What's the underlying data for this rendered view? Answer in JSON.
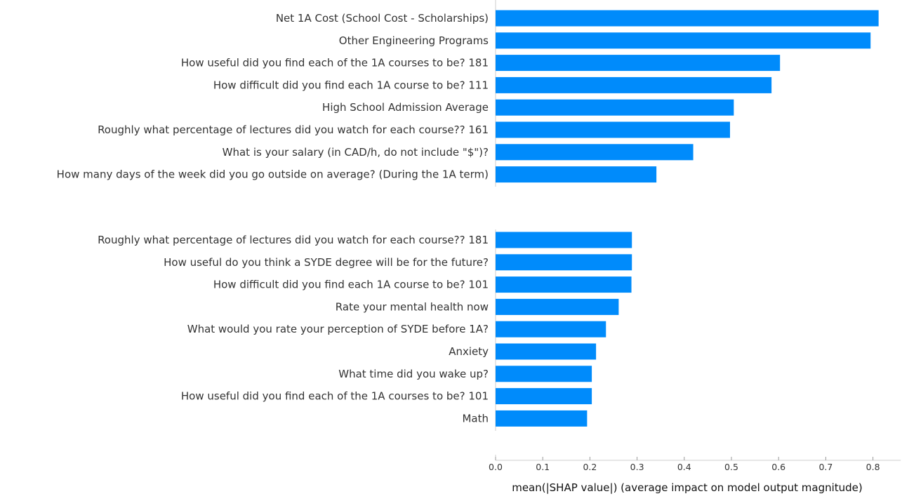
{
  "chart_data": {
    "type": "bar",
    "orientation": "horizontal",
    "bar_color": "#008bfb",
    "xlabel": "mean(|SHAP value|) (average impact on model output magnitude)",
    "xlim": [
      0,
      0.85
    ],
    "xticks": [
      {
        "value": 0.0,
        "label": "0.0"
      },
      {
        "value": 0.1,
        "label": "0.1"
      },
      {
        "value": 0.2,
        "label": "0.2"
      },
      {
        "value": 0.3,
        "label": "0.3"
      },
      {
        "value": 0.4,
        "label": "0.4"
      },
      {
        "value": 0.5,
        "label": "0.5"
      },
      {
        "value": 0.6,
        "label": "0.6"
      },
      {
        "value": 0.7,
        "label": "0.7"
      },
      {
        "value": 0.8,
        "label": "0.8"
      }
    ],
    "grid": false,
    "groups": [
      {
        "categories": [
          "Net 1A Cost (School Cost - Scholarships)",
          "Other Engineering Programs",
          "How useful did you find each of the 1A courses to be? 181",
          "How difficult did you find each 1A course to be? 111",
          "High School Admission Average",
          "Roughly what percentage of lectures did you watch for each course?? 161",
          "What is your salary (in CAD/h, do not include \"$\")?",
          "How many days of the week did you go outside on average? (During the 1A term)"
        ],
        "values": [
          0.812,
          0.795,
          0.603,
          0.585,
          0.505,
          0.497,
          0.419,
          0.341
        ]
      },
      {
        "categories": [
          "Roughly what percentage of lectures did you watch for each course?? 181",
          "How useful do you think a SYDE degree will be for the future?",
          "How difficult did you find each 1A course to be? 101",
          "Rate your mental health now",
          "What would you rate your perception of SYDE before 1A?",
          "Anxiety",
          "What time did you wake up?",
          "How useful did you find each of the 1A courses to be? 101",
          "Math"
        ],
        "values": [
          0.289,
          0.289,
          0.288,
          0.261,
          0.234,
          0.213,
          0.204,
          0.204,
          0.194
        ]
      }
    ]
  }
}
